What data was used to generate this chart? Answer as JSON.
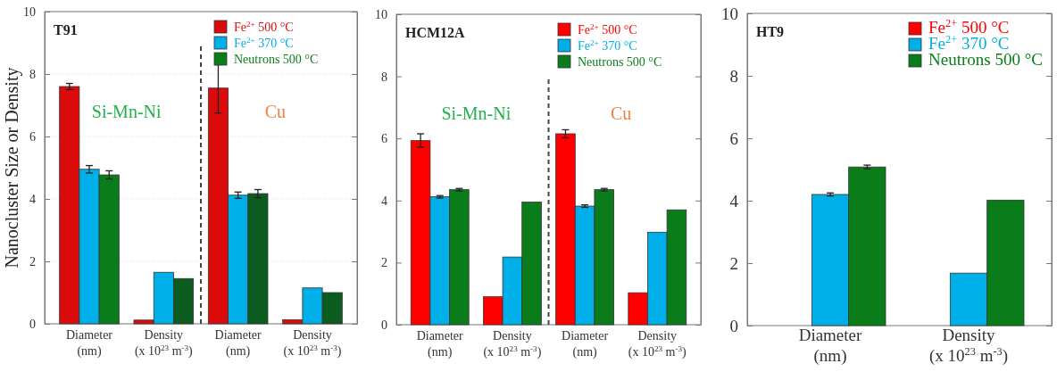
{
  "chart_data": [
    {
      "type": "bar",
      "title": "T91",
      "ylabel": "Nanocluster Size or Density",
      "categories": [
        "Diameter\n(nm)",
        "Density\n(x 10$^{23}$ m$^{-3}$)",
        "Diameter\n(nm)",
        "Density\n(x 10$^{23}$ m$^{-3}$)"
      ],
      "ylim": [
        0,
        10
      ],
      "yticks": [
        0,
        2,
        4,
        6,
        8,
        10
      ],
      "grid": "y",
      "legend": "top right",
      "series": [
        {
          "name": "Fe$^{2+}$ 500 °C",
          "color": "#dc0b0b",
          "values": [
            7.6,
            0.12,
            7.55,
            0.13
          ],
          "errors": [
            0.1,
            null,
            [
              6.75,
              8.3
            ],
            null
          ]
        },
        {
          "name": "Fe$^{2+}$ 370 °C",
          "color": "#00aee8",
          "values": [
            4.95,
            1.65,
            4.12,
            1.15
          ],
          "errors": [
            0.12,
            null,
            0.1,
            null
          ]
        },
        {
          "name": "Neutrons 500 °C",
          "color": "#0a7d1a",
          "colors": [
            "#0a7d1a",
            "#0c5c20",
            "#0c5c20",
            "#0c5c20"
          ],
          "values": [
            4.77,
            1.45,
            4.17,
            1.0
          ],
          "errors": [
            0.13,
            null,
            0.13,
            null
          ]
        }
      ],
      "annotations": [
        "Si-Mn-Ni",
        "Cu"
      ]
    },
    {
      "type": "bar",
      "title": "HCM12A",
      "categories": [
        "Diameter\n(nm)",
        "Density\n(x 10$^{23}$ m$^{-3}$)",
        "Diameter\n(nm)",
        "Density\n(x 10$^{23}$ m$^{-3}$)"
      ],
      "ylim": [
        0,
        10
      ],
      "yticks": [
        0,
        2,
        4,
        6,
        8,
        10
      ],
      "legend": "top right",
      "series": [
        {
          "name": "Fe$^{2+}$ 500 °C",
          "color": "#ff0000",
          "values": [
            5.93,
            0.9,
            6.15,
            1.03
          ],
          "errors": [
            [
              5.72,
              6.15
            ],
            null,
            0.13,
            null
          ]
        },
        {
          "name": "Fe$^{2+}$ 370 °C",
          "color": "#00aee8",
          "values": [
            4.12,
            2.18,
            3.82,
            2.98
          ],
          "errors": [
            0.04,
            null,
            0.04,
            null
          ]
        },
        {
          "name": "Neutrons 500 °C",
          "color": "#0a7d1a",
          "values": [
            4.35,
            3.95,
            4.35,
            3.7
          ],
          "errors": [
            0.04,
            null,
            0.04,
            null
          ]
        }
      ],
      "annotations": [
        "Si-Mn-Ni",
        "Cu"
      ]
    },
    {
      "type": "bar",
      "title": "HT9",
      "categories": [
        "Diameter\n(nm)",
        "Density\n(x 10$^{23}$ m$^{-3}$)"
      ],
      "ylim": [
        0,
        10
      ],
      "yticks": [
        0,
        2,
        4,
        6,
        8,
        10
      ],
      "legend": "top right",
      "series": [
        {
          "name": "Fe$^{2+}$ 500 °C",
          "color": "#ff0000",
          "values": [
            null,
            null
          ]
        },
        {
          "name": "Fe$^{2+}$ 370 °C",
          "color": "#00aee8",
          "values": [
            4.2,
            1.68
          ],
          "errors": [
            0.05,
            null
          ]
        },
        {
          "name": "Neutrons 500 °C",
          "color": "#0a7d1a",
          "values": [
            5.08,
            4.02
          ],
          "errors": [
            0.06,
            null
          ]
        }
      ]
    }
  ]
}
